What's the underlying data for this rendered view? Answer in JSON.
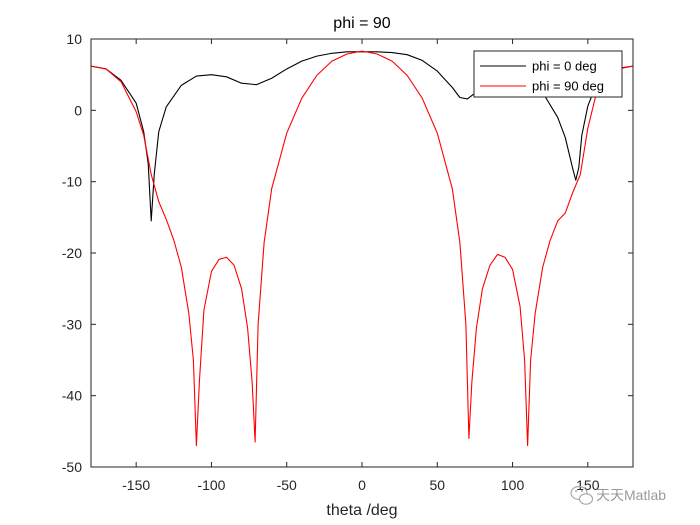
{
  "chart_data": {
    "type": "line",
    "title": "phi = 90",
    "xlabel": "theta /deg",
    "ylabel": "",
    "xlim": [
      -180,
      180
    ],
    "ylim": [
      -50,
      10
    ],
    "xticks": [
      -150,
      -100,
      -50,
      0,
      50,
      100,
      150
    ],
    "yticks": [
      -50,
      -40,
      -30,
      -20,
      -10,
      0,
      10
    ],
    "grid": false,
    "legend_position": "top-right",
    "series": [
      {
        "name": "phi = 0 deg",
        "color": "#000000",
        "x": [
          -180,
          -170,
          -160,
          -150,
          -145,
          -142,
          -140,
          -138,
          -135,
          -130,
          -120,
          -110,
          -100,
          -90,
          -80,
          -70,
          -60,
          -50,
          -40,
          -30,
          -20,
          -10,
          0,
          10,
          20,
          30,
          40,
          50,
          60,
          65,
          70,
          75,
          80,
          90,
          100,
          110,
          120,
          130,
          135,
          140,
          142,
          144,
          146,
          150,
          155,
          160,
          170,
          180
        ],
        "values": [
          6.2,
          5.8,
          4.2,
          1.0,
          -3.0,
          -7.5,
          -15.5,
          -9.0,
          -3.0,
          0.5,
          3.5,
          4.8,
          5.0,
          4.7,
          3.8,
          3.6,
          4.5,
          5.8,
          6.9,
          7.6,
          8.0,
          8.2,
          8.2,
          8.2,
          8.1,
          7.8,
          7.0,
          5.5,
          3.2,
          1.8,
          1.6,
          2.4,
          3.6,
          4.8,
          5.2,
          4.3,
          2.5,
          -1.0,
          -3.8,
          -8.2,
          -9.8,
          -8.0,
          -3.5,
          0.6,
          3.3,
          4.9,
          5.9,
          6.2
        ]
      },
      {
        "name": "phi = 90 deg",
        "color": "#ff0000",
        "x": [
          -180,
          -170,
          -160,
          -150,
          -145,
          -140,
          -135,
          -130,
          -125,
          -120,
          -115,
          -112,
          -110,
          -108,
          -105,
          -100,
          -95,
          -90,
          -85,
          -80,
          -76,
          -73,
          -71,
          -69,
          -65,
          -60,
          -50,
          -40,
          -30,
          -20,
          -10,
          0,
          10,
          20,
          30,
          40,
          50,
          60,
          65,
          69,
          71,
          73,
          76,
          80,
          85,
          90,
          95,
          100,
          105,
          108,
          110,
          112,
          115,
          120,
          125,
          130,
          135,
          140,
          145,
          150,
          155,
          160,
          170,
          180
        ],
        "values": [
          6.2,
          5.8,
          4.0,
          -0.2,
          -3.5,
          -9.0,
          -12.8,
          -15.3,
          -18.2,
          -22.0,
          -28.5,
          -35.0,
          -47.0,
          -38.0,
          -28.0,
          -22.6,
          -20.9,
          -20.6,
          -21.7,
          -25.0,
          -30.5,
          -38.0,
          -46.5,
          -30.0,
          -18.5,
          -11.0,
          -3.2,
          1.7,
          4.9,
          6.9,
          7.9,
          8.3,
          7.9,
          6.9,
          4.9,
          1.7,
          -3.2,
          -11.0,
          -18.5,
          -30.0,
          -46.0,
          -38.0,
          -30.5,
          -25.0,
          -21.7,
          -20.2,
          -20.6,
          -22.3,
          -27.5,
          -35.0,
          -47.0,
          -35.0,
          -28.5,
          -22.0,
          -18.2,
          -15.5,
          -14.4,
          -11.5,
          -9.0,
          -2.5,
          1.8,
          4.0,
          5.8,
          6.2
        ]
      }
    ]
  },
  "watermark": {
    "text": "天天Matlab",
    "icon": "wechat-icon"
  }
}
